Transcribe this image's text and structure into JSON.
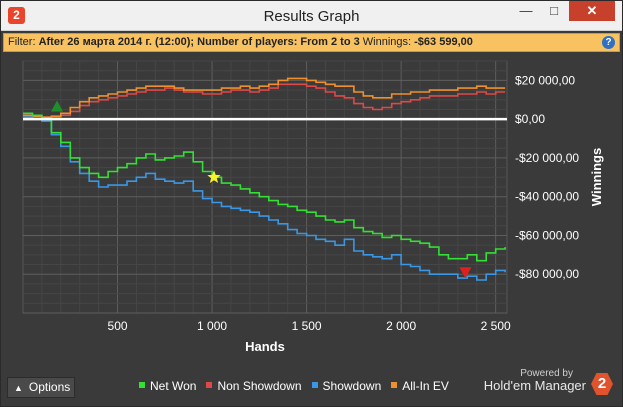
{
  "window": {
    "title": "Results Graph",
    "app_icon": "2",
    "min_glyph": "—",
    "max_glyph": "□",
    "close_glyph": "✕"
  },
  "filter": {
    "prefix": "Filter:",
    "condition": "After 26 марта 2014 г. (12:00); Number of players: From 2 to 3",
    "winnings_label": "Winnings:",
    "winnings_value": "-$63 599,00",
    "help_glyph": "?"
  },
  "bottom": {
    "options_label": "Options",
    "options_caret": "▲",
    "powered_by": "Powered by",
    "brand_name": "Hold'em Manager",
    "brand_logo": "2"
  },
  "chart_data": {
    "type": "line",
    "xlabel": "Hands",
    "ylabel": "Winnings",
    "xlim": [
      0,
      2560
    ],
    "ylim": [
      -100000,
      30000
    ],
    "x_ticks": [
      500,
      1000,
      1500,
      2000,
      2500
    ],
    "x_tick_labels": [
      "500",
      "1 000",
      "1 500",
      "2 000",
      "2 500"
    ],
    "y_ticks": [
      20000,
      0,
      -20000,
      -40000,
      -60000,
      -80000
    ],
    "y_tick_labels": [
      "$20 000,00",
      "$0,00",
      "-$20 000,00",
      "-$40 000,00",
      "-$60 000,00",
      "-$80 000,00"
    ],
    "grid": true,
    "legend_position": "bottom",
    "zero_line": true,
    "series": [
      {
        "name": "Net Won",
        "color": "#33e033",
        "x": [
          0,
          50,
          100,
          150,
          200,
          250,
          300,
          350,
          400,
          450,
          500,
          550,
          600,
          650,
          700,
          750,
          800,
          850,
          900,
          950,
          1000,
          1050,
          1100,
          1150,
          1200,
          1250,
          1300,
          1350,
          1400,
          1450,
          1500,
          1550,
          1600,
          1650,
          1700,
          1750,
          1800,
          1850,
          1900,
          1950,
          2000,
          2050,
          2100,
          2150,
          2200,
          2250,
          2300,
          2350,
          2400,
          2450,
          2500,
          2550
        ],
        "y": [
          3000,
          2000,
          0,
          -7000,
          -12000,
          -20000,
          -25000,
          -28000,
          -30000,
          -27000,
          -25000,
          -23000,
          -20000,
          -18000,
          -21000,
          -20000,
          -19000,
          -17000,
          -22000,
          -27000,
          -30000,
          -33000,
          -34000,
          -36000,
          -38000,
          -40000,
          -42000,
          -44000,
          -45000,
          -47000,
          -48000,
          -50000,
          -52000,
          -53000,
          -52000,
          -56000,
          -58000,
          -59000,
          -61000,
          -60000,
          -62000,
          -63000,
          -64000,
          -66000,
          -70000,
          -72000,
          -72000,
          -70000,
          -73000,
          -69000,
          -67000,
          -66000
        ]
      },
      {
        "name": "Non Showdown",
        "color": "#e04848",
        "x": [
          0,
          50,
          100,
          150,
          200,
          250,
          300,
          350,
          400,
          450,
          500,
          550,
          600,
          650,
          700,
          750,
          800,
          850,
          900,
          950,
          1000,
          1050,
          1100,
          1150,
          1200,
          1250,
          1300,
          1350,
          1400,
          1450,
          1500,
          1550,
          1600,
          1650,
          1700,
          1750,
          1800,
          1850,
          1900,
          1950,
          2000,
          2050,
          2100,
          2150,
          2200,
          2250,
          2300,
          2350,
          2400,
          2450,
          2500,
          2550
        ],
        "y": [
          2000,
          1500,
          1000,
          1000,
          2000,
          4000,
          7000,
          9000,
          10000,
          11000,
          12000,
          13000,
          14000,
          15000,
          15000,
          16000,
          15000,
          14000,
          14000,
          13000,
          13000,
          14000,
          15000,
          15000,
          14000,
          15000,
          16000,
          18000,
          18000,
          18000,
          17000,
          16000,
          14000,
          12000,
          11000,
          8000,
          6000,
          5000,
          6000,
          8000,
          9000,
          10000,
          11000,
          12000,
          12000,
          12000,
          13000,
          13000,
          14000,
          13000,
          14000,
          14000
        ]
      },
      {
        "name": "Showdown",
        "color": "#3a97e6",
        "x": [
          0,
          50,
          100,
          150,
          200,
          250,
          300,
          350,
          400,
          450,
          500,
          550,
          600,
          650,
          700,
          750,
          800,
          850,
          900,
          950,
          1000,
          1050,
          1100,
          1150,
          1200,
          1250,
          1300,
          1350,
          1400,
          1450,
          1500,
          1550,
          1600,
          1650,
          1700,
          1750,
          1800,
          1850,
          1900,
          1950,
          2000,
          2050,
          2100,
          2150,
          2200,
          2250,
          2300,
          2350,
          2400,
          2450,
          2500,
          2550
        ],
        "y": [
          1000,
          500,
          -1000,
          -8000,
          -14000,
          -22000,
          -28000,
          -32000,
          -35000,
          -34000,
          -34000,
          -32000,
          -30000,
          -28000,
          -31000,
          -32000,
          -33000,
          -32000,
          -37000,
          -41000,
          -43000,
          -45000,
          -46000,
          -47000,
          -48000,
          -50000,
          -52000,
          -54000,
          -57000,
          -59000,
          -60000,
          -62000,
          -63000,
          -65000,
          -62000,
          -68000,
          -70000,
          -71000,
          -72000,
          -70000,
          -75000,
          -76000,
          -78000,
          -80000,
          -80000,
          -80000,
          -82000,
          -81000,
          -83000,
          -80000,
          -78000,
          -79000
        ]
      },
      {
        "name": "All-In EV",
        "color": "#f0902c",
        "x": [
          0,
          50,
          100,
          150,
          200,
          250,
          300,
          350,
          400,
          450,
          500,
          550,
          600,
          650,
          700,
          750,
          800,
          850,
          900,
          950,
          1000,
          1050,
          1100,
          1150,
          1200,
          1250,
          1300,
          1350,
          1400,
          1450,
          1500,
          1550,
          1600,
          1650,
          1700,
          1750,
          1800,
          1850,
          1900,
          1950,
          2000,
          2050,
          2100,
          2150,
          2200,
          2250,
          2300,
          2350,
          2400,
          2450,
          2500,
          2550
        ],
        "y": [
          2000,
          1500,
          1000,
          1500,
          3000,
          6000,
          9000,
          11000,
          12000,
          13000,
          14000,
          15000,
          16000,
          17000,
          17000,
          17000,
          16000,
          15000,
          15000,
          15000,
          15000,
          16000,
          16000,
          17000,
          16000,
          17000,
          18000,
          20000,
          21000,
          21000,
          20000,
          19000,
          18000,
          17000,
          17000,
          14000,
          12000,
          11000,
          11000,
          13000,
          13000,
          14000,
          14000,
          15000,
          15000,
          15000,
          16000,
          16000,
          17000,
          16000,
          16000,
          16000
        ]
      }
    ],
    "markers": [
      {
        "kind": "max",
        "shape": "triangle-up",
        "color": "#1e8f2a",
        "x": 180,
        "y": 6000
      },
      {
        "kind": "current",
        "shape": "star",
        "color": "#f7f22a",
        "x": 1010,
        "y": -30000
      },
      {
        "kind": "min",
        "shape": "triangle-down",
        "color": "#e02020",
        "x": 2340,
        "y": -79000
      }
    ]
  }
}
